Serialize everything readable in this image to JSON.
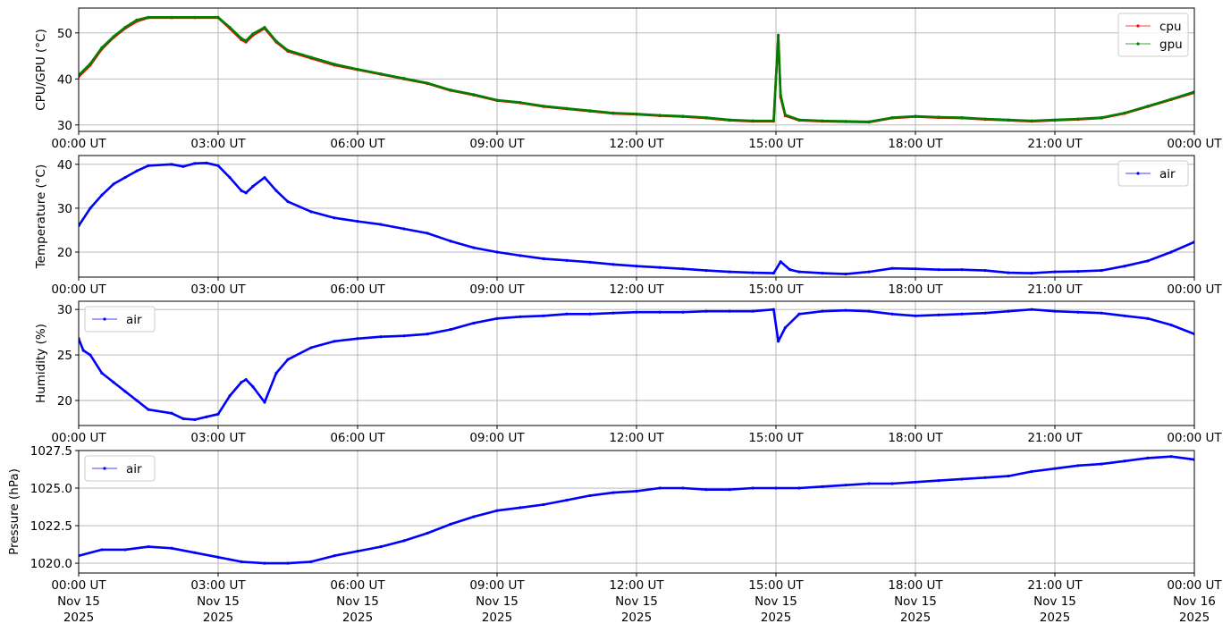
{
  "chart_data": [
    {
      "type": "line",
      "ylabel": "CPU/GPU (°C)",
      "xlim": [
        0,
        24
      ],
      "ylim": [
        28.6,
        55.4
      ],
      "yticks": [
        30,
        40,
        50
      ],
      "ytick_labels": [
        "30",
        "40",
        "50"
      ],
      "xtick_labels": [
        "00:00 UT",
        "03:00 UT",
        "06:00 UT",
        "09:00 UT",
        "12:00 UT",
        "15:00 UT",
        "18:00 UT",
        "21:00 UT",
        "00:00 UT"
      ],
      "grid": true,
      "legend": "top-right",
      "series": [
        {
          "name": "cpu",
          "color": "#ff0000",
          "x": [
            0,
            0.25,
            0.5,
            0.75,
            1,
            1.25,
            1.5,
            2,
            2.5,
            3,
            3.25,
            3.5,
            3.6,
            3.75,
            4,
            4.25,
            4.5,
            5,
            5.5,
            6,
            6.5,
            7,
            7.5,
            8,
            8.5,
            9,
            9.5,
            10,
            10.5,
            11,
            11.5,
            12,
            12.5,
            13,
            13.5,
            14,
            14.5,
            14.95,
            15.05,
            15.1,
            15.2,
            15.5,
            16,
            16.5,
            17,
            17.5,
            18,
            18.5,
            19,
            19.5,
            20,
            20.5,
            21,
            21.5,
            22,
            22.5,
            23,
            23.5,
            24
          ],
          "y": [
            40.5,
            43,
            46.5,
            49,
            51,
            52.5,
            53.3,
            53.3,
            53.3,
            53.3,
            51,
            48.5,
            48,
            49.5,
            51,
            48,
            46,
            44.5,
            43,
            42,
            41,
            40,
            39,
            37.5,
            36.5,
            35.3,
            34.8,
            34,
            33.5,
            33,
            32.5,
            32.3,
            32,
            31.8,
            31.5,
            31,
            30.8,
            30.8,
            49.3,
            36,
            32,
            31,
            30.8,
            30.7,
            30.6,
            31.5,
            31.8,
            31.6,
            31.5,
            31.2,
            31,
            30.8,
            31,
            31.2,
            31.5,
            32.5,
            34,
            35.5,
            37
          ]
        },
        {
          "name": "gpu",
          "color": "#008000",
          "x": [
            0,
            0.25,
            0.5,
            0.75,
            1,
            1.25,
            1.5,
            2,
            2.5,
            3,
            3.25,
            3.5,
            3.6,
            3.75,
            4,
            4.25,
            4.5,
            5,
            5.5,
            6,
            6.5,
            7,
            7.5,
            8,
            8.5,
            9,
            9.5,
            10,
            10.5,
            11,
            11.5,
            12,
            12.5,
            13,
            13.5,
            14,
            14.5,
            14.95,
            15.05,
            15.1,
            15.2,
            15.5,
            16,
            16.5,
            17,
            17.5,
            18,
            18.5,
            19,
            19.5,
            20,
            20.5,
            21,
            21.5,
            22,
            22.5,
            23,
            23.5,
            24
          ],
          "y": [
            40.8,
            43.3,
            46.8,
            49.2,
            51.2,
            52.8,
            53.4,
            53.4,
            53.4,
            53.4,
            51.2,
            48.8,
            48.3,
            49.8,
            51.2,
            48.2,
            46.2,
            44.7,
            43.2,
            42.1,
            41.1,
            40.1,
            39.1,
            37.6,
            36.6,
            35.4,
            34.9,
            34.1,
            33.6,
            33.1,
            32.6,
            32.4,
            32.1,
            31.9,
            31.6,
            31.1,
            30.9,
            30.9,
            49.5,
            36.5,
            32.2,
            31.1,
            30.9,
            30.8,
            30.7,
            31.6,
            31.9,
            31.7,
            31.6,
            31.3,
            31.1,
            30.9,
            31.1,
            31.3,
            31.6,
            32.6,
            34.1,
            35.6,
            37.2
          ]
        }
      ]
    },
    {
      "type": "line",
      "ylabel": "Temperature (°C)",
      "xlim": [
        0,
        24
      ],
      "ylim": [
        14.3,
        42.0
      ],
      "yticks": [
        20,
        30,
        40
      ],
      "ytick_labels": [
        "20",
        "30",
        "40"
      ],
      "xtick_labels": [
        "00:00 UT",
        "03:00 UT",
        "06:00 UT",
        "09:00 UT",
        "12:00 UT",
        "15:00 UT",
        "18:00 UT",
        "21:00 UT",
        "00:00 UT"
      ],
      "grid": true,
      "legend": "top-right",
      "series": [
        {
          "name": "air",
          "color": "#0000ff",
          "x": [
            0,
            0.25,
            0.5,
            0.75,
            1,
            1.25,
            1.5,
            2,
            2.25,
            2.5,
            2.75,
            3,
            3.25,
            3.5,
            3.6,
            3.75,
            4,
            4.25,
            4.5,
            5,
            5.5,
            6,
            6.5,
            7,
            7.5,
            8,
            8.5,
            9,
            9.5,
            10,
            10.5,
            11,
            11.5,
            12,
            12.5,
            13,
            13.5,
            14,
            14.5,
            14.95,
            15.1,
            15.3,
            15.5,
            16,
            16.5,
            17,
            17.5,
            18,
            18.5,
            19,
            19.5,
            20,
            20.5,
            21,
            21.5,
            22,
            22.5,
            23,
            23.5,
            24
          ],
          "y": [
            26,
            30,
            33,
            35.5,
            37,
            38.5,
            39.7,
            40,
            39.5,
            40.2,
            40.3,
            39.7,
            37,
            34,
            33.5,
            35,
            37,
            34,
            31.5,
            29.2,
            27.8,
            27,
            26.3,
            25.3,
            24.3,
            22.5,
            21,
            20,
            19.2,
            18.5,
            18.1,
            17.7,
            17.2,
            16.8,
            16.5,
            16.2,
            15.8,
            15.5,
            15.3,
            15.2,
            17.8,
            16,
            15.5,
            15.2,
            15,
            15.5,
            16.3,
            16.2,
            16,
            16,
            15.8,
            15.3,
            15.2,
            15.5,
            15.6,
            15.8,
            16.8,
            18,
            20,
            22.3
          ]
        }
      ]
    },
    {
      "type": "line",
      "ylabel": "Humidity (%)",
      "xlim": [
        0,
        24
      ],
      "ylim": [
        17.25,
        30.9
      ],
      "yticks": [
        20,
        25,
        30
      ],
      "ytick_labels": [
        "20",
        "25",
        "30"
      ],
      "xtick_labels": [
        "00:00 UT",
        "03:00 UT",
        "06:00 UT",
        "09:00 UT",
        "12:00 UT",
        "15:00 UT",
        "18:00 UT",
        "21:00 UT",
        "00:00 UT"
      ],
      "grid": true,
      "legend": "top-left",
      "series": [
        {
          "name": "air",
          "color": "#0000ff",
          "x": [
            0,
            0.1,
            0.25,
            0.5,
            0.75,
            1,
            1.25,
            1.5,
            2,
            2.25,
            2.5,
            2.75,
            3,
            3.25,
            3.5,
            3.6,
            3.75,
            4,
            4.25,
            4.5,
            5,
            5.5,
            6,
            6.5,
            7,
            7.5,
            8,
            8.5,
            9,
            9.5,
            10,
            10.5,
            11,
            11.5,
            12,
            12.5,
            13,
            13.5,
            14,
            14.5,
            14.95,
            15.05,
            15.2,
            15.5,
            16,
            16.5,
            17,
            17.5,
            18,
            18.5,
            19,
            19.5,
            20,
            20.5,
            21,
            21.5,
            22,
            22.5,
            23,
            23.5,
            24
          ],
          "y": [
            26.8,
            25.5,
            25,
            23,
            22,
            21,
            20,
            19,
            18.6,
            18,
            17.9,
            18.2,
            18.5,
            20.5,
            22,
            22.3,
            21.5,
            19.8,
            23,
            24.5,
            25.8,
            26.5,
            26.8,
            27,
            27.1,
            27.3,
            27.8,
            28.5,
            29,
            29.2,
            29.3,
            29.5,
            29.5,
            29.6,
            29.7,
            29.7,
            29.7,
            29.8,
            29.8,
            29.8,
            30,
            26.5,
            28,
            29.5,
            29.8,
            29.9,
            29.8,
            29.5,
            29.3,
            29.4,
            29.5,
            29.6,
            29.8,
            30,
            29.8,
            29.7,
            29.6,
            29.3,
            29,
            28.3,
            27.3
          ]
        }
      ]
    },
    {
      "type": "line",
      "ylabel": "Pressure (hPa)",
      "xlim": [
        0,
        24
      ],
      "ylim": [
        1019.35,
        1027.5
      ],
      "yticks": [
        1020,
        1022.5,
        1025,
        1027.5
      ],
      "ytick_labels": [
        "1020.0",
        "1022.5",
        "1025.0",
        "1027.5"
      ],
      "xtick_labels": [
        [
          "00:00 UT",
          "Nov 15",
          "2025"
        ],
        [
          "03:00 UT",
          "Nov 15",
          "2025"
        ],
        [
          "06:00 UT",
          "Nov 15",
          "2025"
        ],
        [
          "09:00 UT",
          "Nov 15",
          "2025"
        ],
        [
          "12:00 UT",
          "Nov 15",
          "2025"
        ],
        [
          "15:00 UT",
          "Nov 15",
          "2025"
        ],
        [
          "18:00 UT",
          "Nov 15",
          "2025"
        ],
        [
          "21:00 UT",
          "Nov 15",
          "2025"
        ],
        [
          "00:00 UT",
          "Nov 16",
          "2025"
        ]
      ],
      "grid": true,
      "legend": "top-left",
      "series": [
        {
          "name": "air",
          "color": "#0000ff",
          "x": [
            0,
            0.5,
            1,
            1.5,
            2,
            2.5,
            3,
            3.5,
            4,
            4.5,
            5,
            5.5,
            6,
            6.5,
            7,
            7.5,
            8,
            8.5,
            9,
            9.5,
            10,
            10.5,
            11,
            11.5,
            12,
            12.5,
            13,
            13.5,
            14,
            14.5,
            15,
            15.5,
            16,
            16.5,
            17,
            17.5,
            18,
            18.5,
            19,
            19.5,
            20,
            20.5,
            21,
            21.5,
            22,
            22.5,
            23,
            23.5,
            24
          ],
          "y": [
            1020.5,
            1020.9,
            1020.9,
            1021.1,
            1021,
            1020.7,
            1020.4,
            1020.1,
            1020,
            1020,
            1020.1,
            1020.5,
            1020.8,
            1021.1,
            1021.5,
            1022,
            1022.6,
            1023.1,
            1023.5,
            1023.7,
            1023.9,
            1024.2,
            1024.5,
            1024.7,
            1024.8,
            1025,
            1025,
            1024.9,
            1024.9,
            1025,
            1025,
            1025,
            1025.1,
            1025.2,
            1025.3,
            1025.3,
            1025.4,
            1025.5,
            1025.6,
            1025.7,
            1025.8,
            1026.1,
            1026.3,
            1026.5,
            1026.6,
            1026.8,
            1027,
            1027.1,
            1026.9
          ]
        }
      ]
    }
  ]
}
